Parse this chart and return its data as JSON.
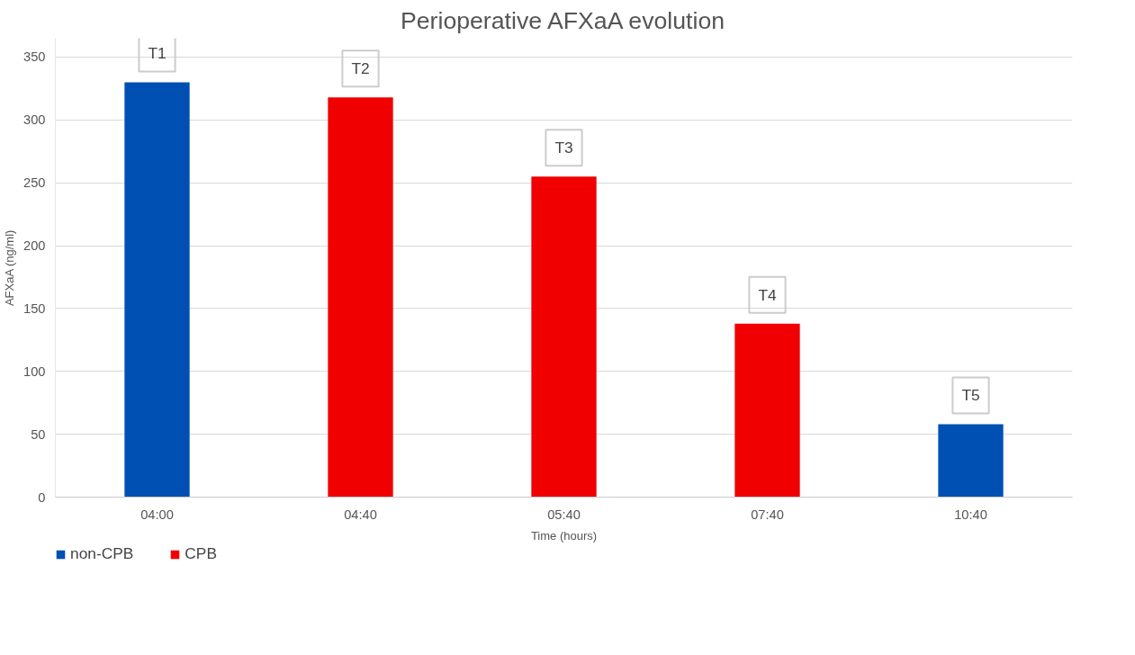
{
  "chart_data": {
    "type": "bar",
    "title": "Perioperative AFXaA evolution",
    "xlabel": "Time (hours)",
    "ylabel": "AFXaA (ng/ml)",
    "categories": [
      "04:00",
      "04:40",
      "05:40",
      "07:40",
      "10:40"
    ],
    "series": [
      {
        "name": "non-CPB",
        "color": "#0050b4",
        "values": [
          330,
          null,
          null,
          null,
          58
        ]
      },
      {
        "name": "CPB",
        "color": "#f00000",
        "values": [
          null,
          318,
          255,
          138,
          null
        ]
      }
    ],
    "ylim": [
      0,
      365
    ],
    "yticks": [
      0,
      50,
      100,
      150,
      200,
      250,
      300,
      350
    ],
    "grid": "y",
    "legend": "bottom left",
    "annotations": [
      {
        "text": "T1",
        "x": "04:00",
        "y": 330
      },
      {
        "text": "T2",
        "x": "04:40",
        "y": 318
      },
      {
        "text": "T3",
        "x": "05:40",
        "y": 255
      },
      {
        "text": "T4",
        "x": "07:40",
        "y": 138
      },
      {
        "text": "T5",
        "x": "10:40",
        "y": 58
      }
    ]
  }
}
